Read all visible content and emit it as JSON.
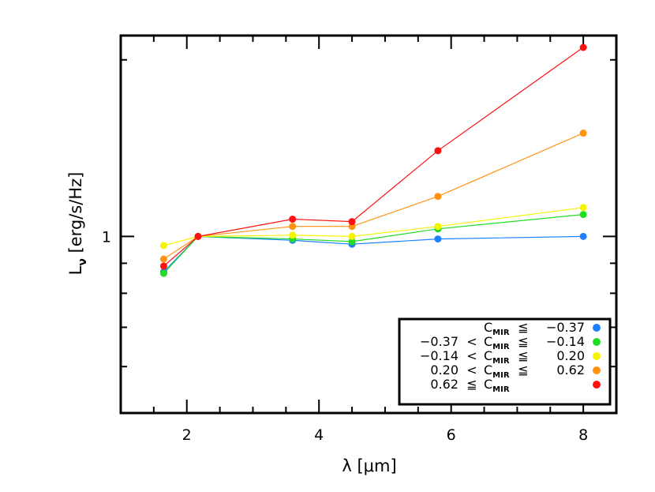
{
  "chart_data": {
    "type": "line",
    "title": "",
    "xlabel": "λ [μm]",
    "ylabel": "L_ν [erg/s/Hz]",
    "ylabel_main": "L",
    "ylabel_sub": "ν",
    "ylabel_rest": " [erg/s/Hz]",
    "xlim": [
      1,
      8.5
    ],
    "ylim": [
      0.5,
      2.2
    ],
    "yscale": "log",
    "grid": false,
    "legend_position": "bottom-right",
    "x": [
      1.65,
      2.17,
      3.6,
      4.5,
      5.8,
      8.0
    ],
    "x_ticks": [
      2,
      4,
      6,
      8
    ],
    "x_tick_labels": [
      "2",
      "4",
      "6",
      "8"
    ],
    "y_ticks": [
      1
    ],
    "y_tick_labels": [
      "1"
    ],
    "series": [
      {
        "key": "s1",
        "color": "#1e7fff",
        "values": [
          0.87,
          1.0,
          0.985,
          0.97,
          0.99,
          1.0
        ]
      },
      {
        "key": "s2",
        "color": "#22dd22",
        "values": [
          0.865,
          1.0,
          0.99,
          0.98,
          1.03,
          1.09
        ]
      },
      {
        "key": "s3",
        "color": "#f5f500",
        "values": [
          0.965,
          1.0,
          1.005,
          1.0,
          1.04,
          1.12
        ]
      },
      {
        "key": "s4",
        "color": "#ff9311",
        "values": [
          0.915,
          1.0,
          1.04,
          1.04,
          1.17,
          1.5
        ]
      },
      {
        "key": "s5",
        "color": "#ff1111",
        "values": [
          0.89,
          1.0,
          1.07,
          1.06,
          1.4,
          2.1
        ]
      }
    ],
    "legend": [
      {
        "lhs": "",
        "op1": "",
        "var": "C",
        "sub": "MIR",
        "op2": "≦",
        "rhs": "−0.37",
        "color": "#1e7fff"
      },
      {
        "lhs": "−0.37",
        "op1": "<",
        "var": "C",
        "sub": "MIR",
        "op2": "≦",
        "rhs": "−0.14",
        "color": "#22dd22"
      },
      {
        "lhs": "−0.14",
        "op1": "<",
        "var": "C",
        "sub": "MIR",
        "op2": "≦",
        "rhs": "0.20",
        "color": "#f5f500"
      },
      {
        "lhs": "0.20",
        "op1": "<",
        "var": "C",
        "sub": "MIR",
        "op2": "≦",
        "rhs": "0.62",
        "color": "#ff9311"
      },
      {
        "lhs": "0.62",
        "op1": "≦",
        "var": "C",
        "sub": "MIR",
        "op2": "",
        "rhs": "",
        "color": "#ff1111"
      }
    ]
  }
}
